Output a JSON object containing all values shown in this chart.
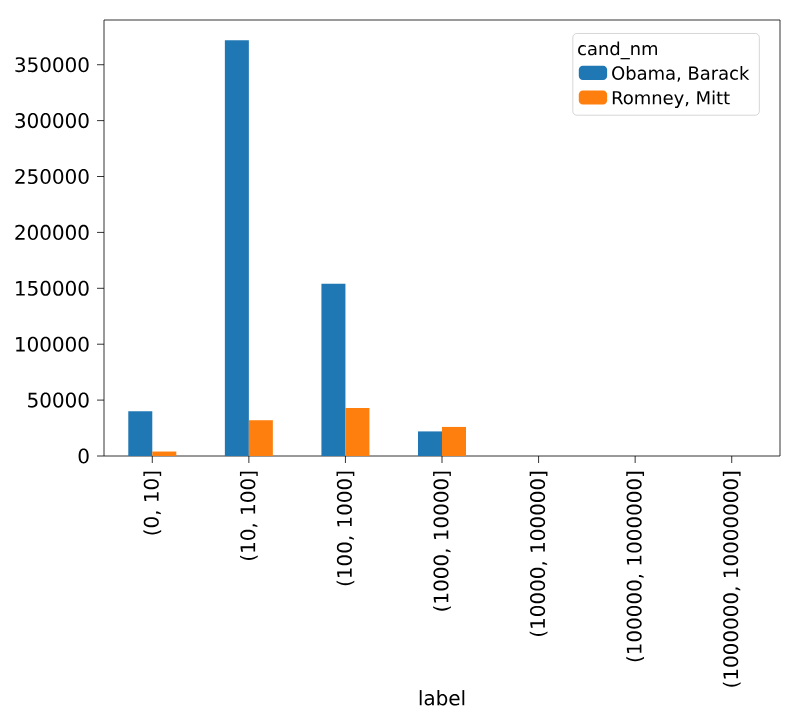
{
  "chart_data": {
    "type": "bar",
    "categories": [
      "(0, 10]",
      "(10, 100]",
      "(100, 1000]",
      "(1000, 10000]",
      "(10000, 100000]",
      "(100000, 1000000]",
      "(1000000, 10000000]"
    ],
    "series": [
      {
        "name": "Obama, Barack",
        "color": "#1f77b4",
        "values": [
          40000,
          372000,
          154000,
          22000,
          0,
          0,
          0
        ]
      },
      {
        "name": "Romney, Mitt",
        "color": "#ff7f0e",
        "values": [
          4000,
          32000,
          43000,
          26000,
          0,
          0,
          0
        ]
      }
    ],
    "xlabel": "label",
    "legend_title": "cand_nm",
    "legend": "top right",
    "ylim": [
      0,
      390000
    ],
    "yticks": [
      0,
      50000,
      100000,
      150000,
      200000,
      250000,
      300000,
      350000
    ]
  }
}
